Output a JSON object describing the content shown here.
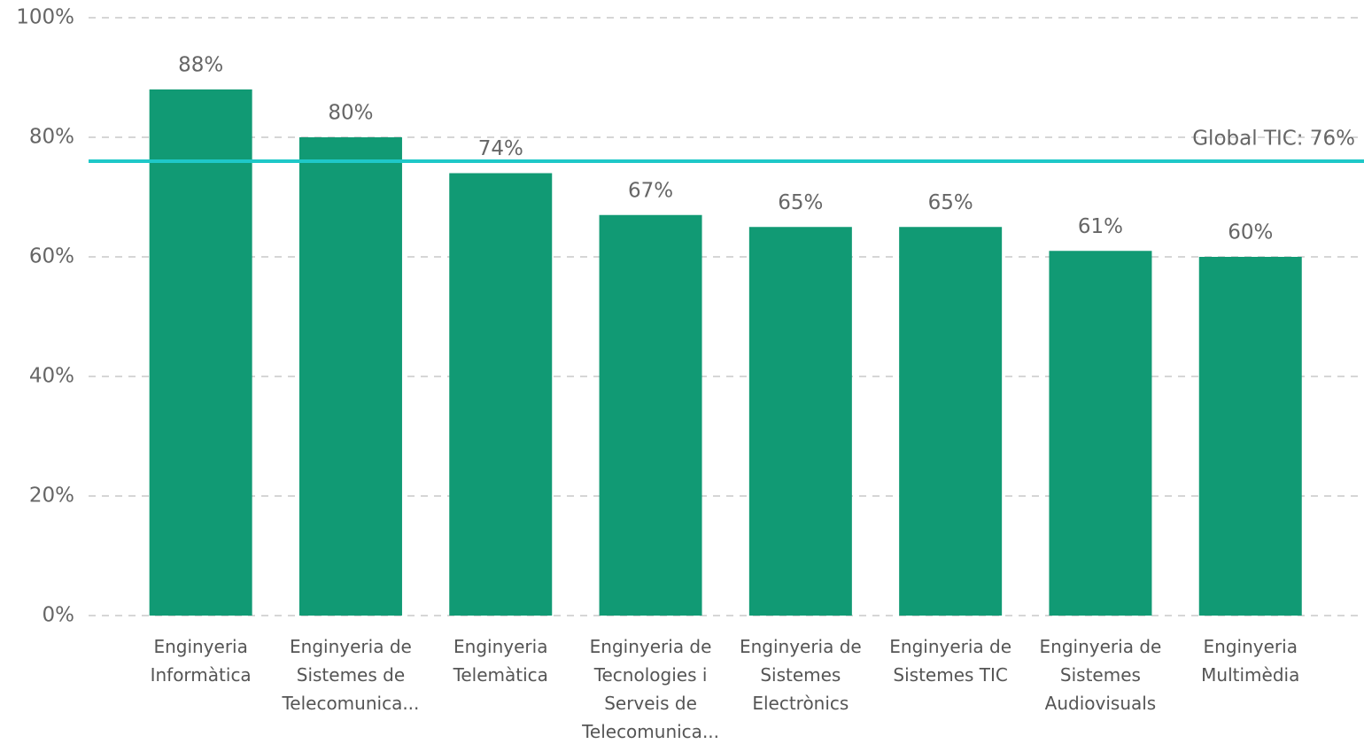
{
  "chart_data": {
    "type": "bar",
    "categories": [
      [
        "Enginyeria",
        "Informàtica"
      ],
      [
        "Enginyeria de",
        "Sistemes de",
        "Telecomunica..."
      ],
      [
        "Enginyeria",
        "Telemàtica"
      ],
      [
        "Enginyeria de",
        "Tecnologies i",
        "Serveis de",
        "Telecomunica..."
      ],
      [
        "Enginyeria de",
        "Sistemes",
        "Electrònics"
      ],
      [
        "Enginyeria de",
        "Sistemes TIC"
      ],
      [
        "Enginyeria de",
        "Sistemes",
        "Audiovisuals"
      ],
      [
        "Enginyeria",
        "Multimèdia"
      ]
    ],
    "values": [
      88,
      80,
      74,
      67,
      65,
      65,
      61,
      60
    ],
    "value_labels": [
      "88%",
      "80%",
      "74%",
      "67%",
      "65%",
      "65%",
      "61%",
      "60%"
    ],
    "color": "#119a74",
    "ylim": [
      0,
      100
    ],
    "yticks": [
      {
        "value": 0,
        "label": "0%"
      },
      {
        "value": 20,
        "label": "20%"
      },
      {
        "value": 40,
        "label": "40%"
      },
      {
        "value": 60,
        "label": "60%"
      },
      {
        "value": 80,
        "label": "80%"
      },
      {
        "value": 100,
        "label": "100%"
      }
    ],
    "grid": true,
    "reference_line": {
      "value": 76,
      "label": "Global TIC: 76%",
      "color": "#1ec8c8"
    }
  }
}
